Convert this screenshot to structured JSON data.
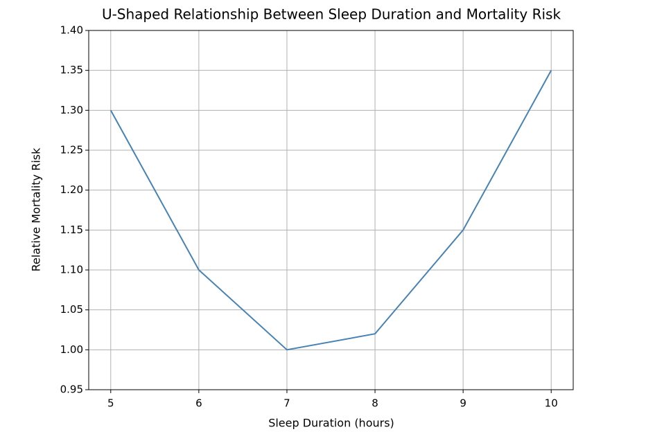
{
  "chart_data": {
    "type": "line",
    "title": "U-Shaped Relationship Between Sleep Duration and Mortality Risk",
    "x_label": "Sleep Duration (hours)",
    "y_label": "Relative Mortality Risk",
    "x": [
      5,
      6,
      7,
      8,
      9,
      10
    ],
    "values": [
      1.3,
      1.1,
      1.0,
      1.02,
      1.15,
      1.35
    ],
    "color": "#4682b4",
    "xlim": [
      4.75,
      10.25
    ],
    "xticks": [
      5,
      6,
      7,
      8,
      9,
      10
    ],
    "ylim": [
      0.95,
      1.4
    ],
    "yticks": [
      0.95,
      {
        "value": 1,
        "label": "1.00"
      },
      1.05,
      {
        "value": 1.1,
        "label": "1.10"
      },
      1.15,
      {
        "value": 1.2,
        "label": "1.20"
      },
      1.25,
      {
        "value": 1.3,
        "label": "1.30"
      },
      1.35,
      {
        "value": 1.4,
        "label": "1.40"
      }
    ],
    "grid": true
  }
}
